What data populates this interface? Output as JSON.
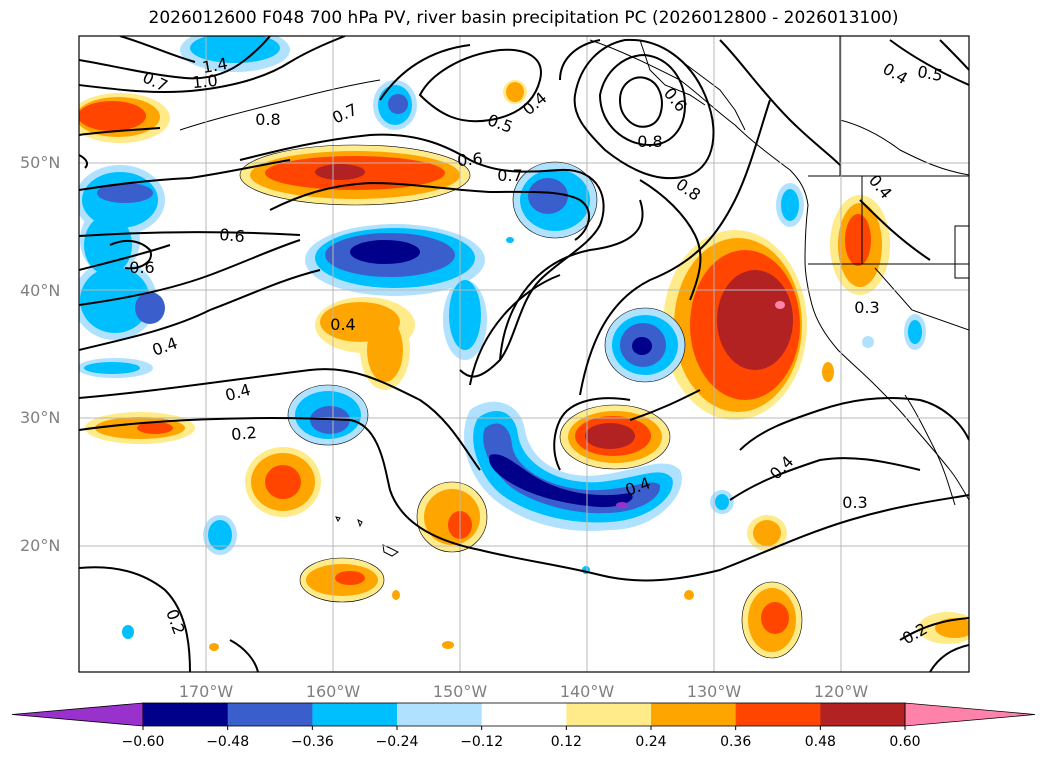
{
  "title": "2026012600 F048 700 hPa PV, river basin precipitation PC (2026012800 - 2026013100)",
  "lat_labels": [
    "50°N",
    "40°N",
    "30°N",
    "20°N"
  ],
  "lon_labels": [
    "170°W",
    "160°W",
    "150°W",
    "140°W",
    "130°W",
    "120°W"
  ],
  "colorbar": {
    "ticks": [
      "−0.60",
      "−0.48",
      "−0.36",
      "−0.24",
      "−0.12",
      "0.12",
      "0.24",
      "0.36",
      "0.48",
      "0.60"
    ],
    "colors": [
      "#9932cc",
      "#00008b",
      "#3a5fcd",
      "#00bfff",
      "#b0e2ff",
      "#ffffff",
      "#ffeb8a",
      "#ffa500",
      "#ff4500",
      "#b22222",
      "#ff82ab"
    ]
  },
  "contour_labels": [
    {
      "text": "1.4"
    },
    {
      "text": "1.0"
    },
    {
      "text": "0.7"
    },
    {
      "text": "0.8"
    },
    {
      "text": "0.7"
    },
    {
      "text": "0.4"
    },
    {
      "text": "0.5"
    },
    {
      "text": "0.4"
    },
    {
      "text": "0.8"
    },
    {
      "text": "0.5"
    },
    {
      "text": "0.6"
    },
    {
      "text": "0.7"
    },
    {
      "text": "0.8"
    },
    {
      "text": "0.6"
    },
    {
      "text": "0.6"
    },
    {
      "text": "0.6"
    },
    {
      "text": "0.4"
    },
    {
      "text": "0.4"
    },
    {
      "text": "0.4"
    },
    {
      "text": "0.2"
    },
    {
      "text": "0.3"
    },
    {
      "text": "0.4"
    },
    {
      "text": "0.3"
    },
    {
      "text": "0.2"
    },
    {
      "text": "0.2"
    },
    {
      "text": "0.4"
    },
    {
      "text": "0.4"
    }
  ]
}
